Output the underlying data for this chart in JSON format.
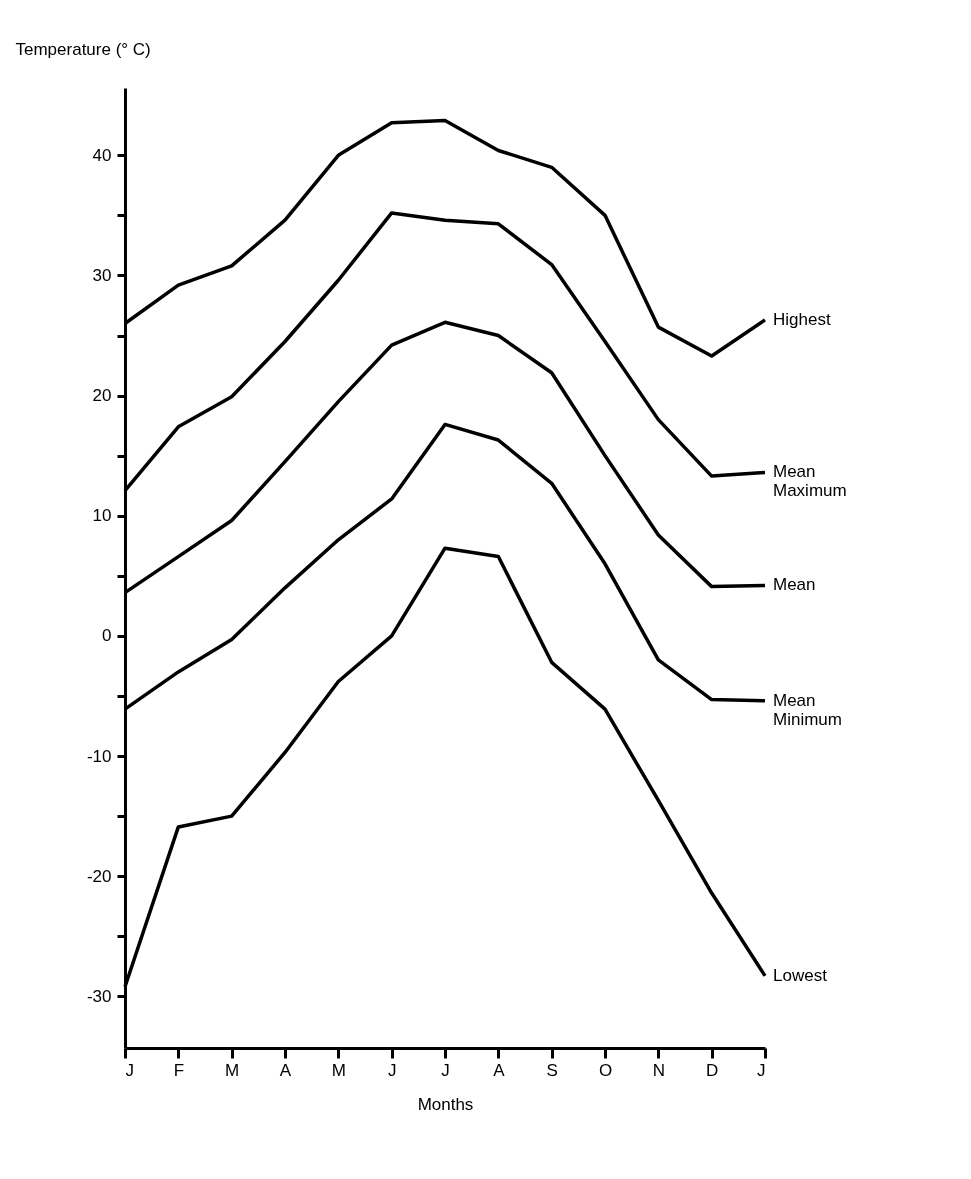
{
  "chart_data": {
    "type": "line",
    "ylabel": "Temperature (° C)",
    "xlabel": "Months",
    "categories": [
      "J",
      "F",
      "M",
      "A",
      "M",
      "J",
      "J",
      "A",
      "S",
      "O",
      "N",
      "D",
      "J"
    ],
    "series": [
      {
        "name": "Highest",
        "color": "#000000",
        "values": [
          26,
          29.2,
          30.8,
          34.6,
          40,
          42.7,
          42.9,
          40.4,
          39,
          35,
          25.7,
          23.3,
          26.3
        ]
      },
      {
        "name": "Mean Maximum",
        "color": "#000000",
        "values": [
          12.1,
          17.4,
          19.9,
          24.5,
          29.6,
          35.2,
          34.6,
          34.3,
          30.9,
          24.5,
          18,
          13.3,
          13.6
        ]
      },
      {
        "name": "Mean",
        "color": "#000000",
        "values": [
          3.6,
          6.6,
          9.6,
          14.5,
          19.5,
          24.2,
          26.1,
          25,
          21.9,
          15,
          8.4,
          4.1,
          4.2
        ]
      },
      {
        "name": "Mean Minimum",
        "color": "#000000",
        "values": [
          -6.1,
          -3,
          -0.3,
          4,
          8,
          11.4,
          17.6,
          16.3,
          12.7,
          6,
          -2,
          -5.3,
          -5.4
        ]
      },
      {
        "name": "Lowest",
        "color": "#000000",
        "values": [
          -29.2,
          -15.9,
          -15,
          -9.7,
          -3.8,
          0,
          7.3,
          6.6,
          -2.2,
          -6.1,
          -13.7,
          -21.4,
          -28.3
        ]
      }
    ],
    "ylim": [
      -34.3,
      45.6
    ],
    "yticks": [
      -30,
      {
        "value": -25,
        "label": null
      },
      -20,
      {
        "value": -15,
        "label": null
      },
      -10,
      {
        "value": -5,
        "label": null
      },
      0,
      {
        "value": 5,
        "label": null
      },
      10,
      {
        "value": 15,
        "label": null
      },
      20,
      {
        "value": 25,
        "label": null
      },
      30,
      {
        "value": 35,
        "label": null
      },
      40
    ],
    "grid": false,
    "legend": false,
    "marker": "none",
    "line_style": "solid"
  }
}
